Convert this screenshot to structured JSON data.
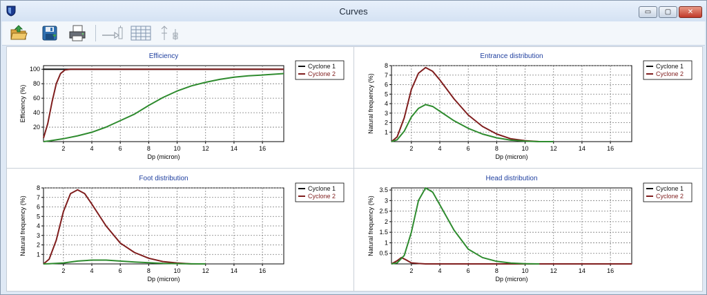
{
  "window": {
    "title": "Curves",
    "controls": {
      "minimize": "▭",
      "maximize": "▢",
      "close": "✕"
    }
  },
  "toolbar": {
    "items": [
      "open-folder-icon",
      "save-icon",
      "print-icon",
      "arrow-tool-icon",
      "table-icon",
      "tree-icon"
    ]
  },
  "colors": {
    "cyclone1": "#111111",
    "cyclone2": "#7f1d1d",
    "green": "#2e8b2e",
    "title": "#1f3f9f"
  },
  "chart_data": [
    {
      "type": "line",
      "title": "Efficiency",
      "xlabel": "Dp (micron)",
      "ylabel": "Efficiency (%)",
      "xlim": [
        0.6,
        17.5
      ],
      "ylim": [
        0,
        105
      ],
      "xticks": [
        "2",
        "4",
        "6",
        "8",
        "10",
        "12",
        "14",
        "16"
      ],
      "yticks": [
        "20",
        "40",
        "60",
        "80",
        "100"
      ],
      "legend": [
        "Cyclone 1",
        "Cyclone 2"
      ],
      "series": [
        {
          "name": "Cyclone 1",
          "color": "#111111",
          "x": [
            0.6,
            17.5
          ],
          "y": [
            100,
            100
          ]
        },
        {
          "name": "Cyclone 2",
          "color": "#7f1d1d",
          "x": [
            0.6,
            0.9,
            1.2,
            1.5,
            1.8,
            2.1,
            2.5,
            17.5
          ],
          "y": [
            5,
            25,
            55,
            80,
            94,
            99,
            100,
            100
          ]
        },
        {
          "name": "green",
          "color": "#2e8b2e",
          "x": [
            0.6,
            1,
            2,
            3,
            4,
            5,
            6,
            7,
            8,
            9,
            10,
            11,
            12,
            13,
            14,
            15,
            16,
            17.5
          ],
          "y": [
            0,
            1,
            4,
            8,
            13,
            20,
            29,
            38,
            50,
            61,
            70,
            77,
            82,
            86,
            89,
            91,
            92,
            94
          ]
        }
      ]
    },
    {
      "type": "line",
      "title": "Entrance distribution",
      "xlabel": "Dp (micron)",
      "ylabel": "Natural frequency (%)",
      "xlim": [
        0.6,
        17.5
      ],
      "ylim": [
        0,
        8
      ],
      "xticks": [
        "2",
        "4",
        "6",
        "8",
        "10",
        "12",
        "14",
        "16"
      ],
      "yticks": [
        "1",
        "2",
        "3",
        "4",
        "5",
        "6",
        "7",
        "8"
      ],
      "legend": [
        "Cyclone 1",
        "Cyclone 2"
      ],
      "series": [
        {
          "name": "Cyclone 2",
          "color": "#7f1d1d",
          "x": [
            0.6,
            1,
            1.5,
            2,
            2.5,
            3,
            3.5,
            4,
            5,
            6,
            7,
            8,
            9,
            10,
            11,
            12
          ],
          "y": [
            0,
            0.5,
            2.5,
            5.5,
            7.2,
            7.8,
            7.4,
            6.5,
            4.5,
            2.8,
            1.6,
            0.8,
            0.3,
            0.1,
            0,
            0
          ]
        },
        {
          "name": "green",
          "color": "#2e8b2e",
          "x": [
            0.6,
            1,
            1.5,
            2,
            2.5,
            3,
            3.5,
            4,
            5,
            6,
            7,
            8,
            9,
            10,
            11,
            12
          ],
          "y": [
            0,
            0.2,
            1.1,
            2.6,
            3.5,
            3.9,
            3.7,
            3.2,
            2.2,
            1.4,
            0.8,
            0.4,
            0.15,
            0.05,
            0,
            0
          ]
        }
      ]
    },
    {
      "type": "line",
      "title": "Foot distribution",
      "xlabel": "Dp (micron)",
      "ylabel": "Natural frequency (%)",
      "xlim": [
        0.6,
        17.5
      ],
      "ylim": [
        0,
        8
      ],
      "xticks": [
        "2",
        "4",
        "6",
        "8",
        "10",
        "12",
        "14",
        "16"
      ],
      "yticks": [
        "1",
        "2",
        "3",
        "4",
        "5",
        "6",
        "7",
        "8"
      ],
      "legend": [
        "Cyclone 1",
        "Cyclone 2"
      ],
      "series": [
        {
          "name": "Cyclone 2",
          "color": "#7f1d1d",
          "x": [
            0.6,
            1,
            1.5,
            2,
            2.5,
            3,
            3.5,
            4,
            5,
            6,
            7,
            8,
            9,
            10,
            11,
            12
          ],
          "y": [
            0,
            0.5,
            2.5,
            5.5,
            7.4,
            7.8,
            7.4,
            6.3,
            4.0,
            2.2,
            1.2,
            0.6,
            0.25,
            0.1,
            0,
            0
          ]
        },
        {
          "name": "green",
          "color": "#2e8b2e",
          "x": [
            0.6,
            1,
            2,
            3,
            4,
            5,
            6,
            7,
            8,
            9,
            10,
            11,
            12
          ],
          "y": [
            0,
            0.02,
            0.1,
            0.3,
            0.4,
            0.4,
            0.3,
            0.2,
            0.12,
            0.06,
            0.03,
            0.01,
            0
          ]
        }
      ]
    },
    {
      "type": "line",
      "title": "Head distribution",
      "xlabel": "Dp (micron)",
      "ylabel": "Natural frequency (%)",
      "xlim": [
        0.6,
        17.5
      ],
      "ylim": [
        0,
        3.6
      ],
      "xticks": [
        "2",
        "4",
        "6",
        "8",
        "10",
        "12",
        "14",
        "16"
      ],
      "yticks": [
        "0.5",
        "1",
        "1.5",
        "2",
        "2.5",
        "3",
        "3.5"
      ],
      "legend": [
        "Cyclone 1",
        "Cyclone 2"
      ],
      "series": [
        {
          "name": "Cyclone 2",
          "color": "#7f1d1d",
          "x": [
            0.6,
            1,
            1.3,
            1.6,
            2,
            2.5,
            3,
            17.5
          ],
          "y": [
            0,
            0.15,
            0.3,
            0.2,
            0.05,
            0.02,
            0,
            0
          ]
        },
        {
          "name": "green",
          "color": "#2e8b2e",
          "x": [
            0.6,
            1,
            1.5,
            2,
            2.5,
            3,
            3.5,
            4,
            4.5,
            5,
            6,
            7,
            8,
            9,
            10,
            11
          ],
          "y": [
            0,
            0.05,
            0.4,
            1.5,
            3.0,
            3.6,
            3.4,
            2.8,
            2.2,
            1.6,
            0.7,
            0.3,
            0.12,
            0.04,
            0.01,
            0
          ]
        }
      ]
    }
  ]
}
